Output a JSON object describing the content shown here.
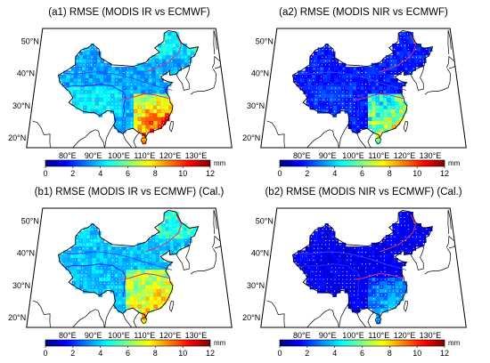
{
  "panels": [
    {
      "id": "a1",
      "title": "(a1) RMSE (MODIS IR vs ECMWF)",
      "pattern": 0
    },
    {
      "id": "a2",
      "title": "(a2) RMSE (MODIS NIR vs ECMWF)",
      "pattern": 1
    },
    {
      "id": "b1",
      "title": "(b1) RMSE (MODIS IR vs ECMWF) (Cal.)",
      "pattern": 2
    },
    {
      "id": "b2",
      "title": "(b2) RMSE (MODIS NIR vs ECMWF) (Cal.)",
      "pattern": 3
    }
  ],
  "lat_labels": [
    "50°N",
    "40°N",
    "30°N",
    "20°N"
  ],
  "lon_labels": [
    "80°E",
    "90°E",
    "100°E",
    "110°E",
    "120°E",
    "130°E"
  ],
  "colorbar": {
    "ticks": [
      "0",
      "2",
      "4",
      "6",
      "8",
      "10",
      "12"
    ],
    "unit": "mm",
    "min": 0,
    "max": 12,
    "colors": [
      "#00007f",
      "#0000ff",
      "#007fff",
      "#00ffff",
      "#7fff7f",
      "#ffff00",
      "#ff7f00",
      "#ff0000",
      "#7f0000"
    ]
  }
}
